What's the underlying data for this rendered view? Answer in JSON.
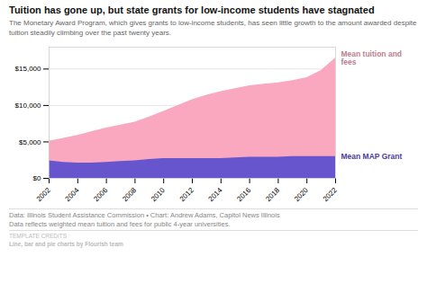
{
  "chart_data": {
    "type": "area",
    "title": "Tuition has gone up, but state grants for low-income students have stagnated",
    "subtitle": "The Monetary Award Program, which gives grants to low-income students, has seen little growth to the amount awarded despite tuition steadily climbing over the past twenty years.",
    "x": [
      2002,
      2003,
      2004,
      2005,
      2006,
      2007,
      2008,
      2009,
      2010,
      2011,
      2012,
      2013,
      2014,
      2015,
      2016,
      2017,
      2018,
      2019,
      2020,
      2021,
      2022
    ],
    "series": [
      {
        "name": "Mean tuition and fees",
        "color": "#f9a8c0",
        "values": [
          5100,
          5500,
          5900,
          6400,
          6900,
          7300,
          7700,
          8400,
          9200,
          10000,
          10800,
          11400,
          11900,
          12300,
          12700,
          12900,
          13100,
          13400,
          13800,
          14800,
          16500
        ]
      },
      {
        "name": "Mean MAP Grant",
        "color": "#6655cc",
        "values": [
          2400,
          2200,
          2100,
          2100,
          2200,
          2300,
          2400,
          2600,
          2700,
          2700,
          2700,
          2700,
          2700,
          2800,
          2900,
          2900,
          2900,
          3000,
          3000,
          3000,
          3000
        ]
      }
    ],
    "xlim": [
      2002,
      2022
    ],
    "xticks": [
      2002,
      2004,
      2006,
      2008,
      2010,
      2012,
      2014,
      2016,
      2018,
      2020,
      2022
    ],
    "ylim": [
      0,
      18000
    ],
    "yticks": [
      {
        "value": 0,
        "label": "$0"
      },
      {
        "value": 5000,
        "label": "$5,000"
      },
      {
        "value": 10000,
        "label": "$10,000"
      },
      {
        "value": 15000,
        "label": "$15,000"
      }
    ],
    "grid": true,
    "footer": [
      "Data: Illinois Student Assistance Commission • Chart: Andrew Adams, Capitol News Illinois",
      "Data reflects weighted mean tuition and fees for public 4-year universities."
    ],
    "credits": [
      "TEMPLATE CREDITS",
      "Line, bar and pie charts by Flourish team"
    ]
  }
}
